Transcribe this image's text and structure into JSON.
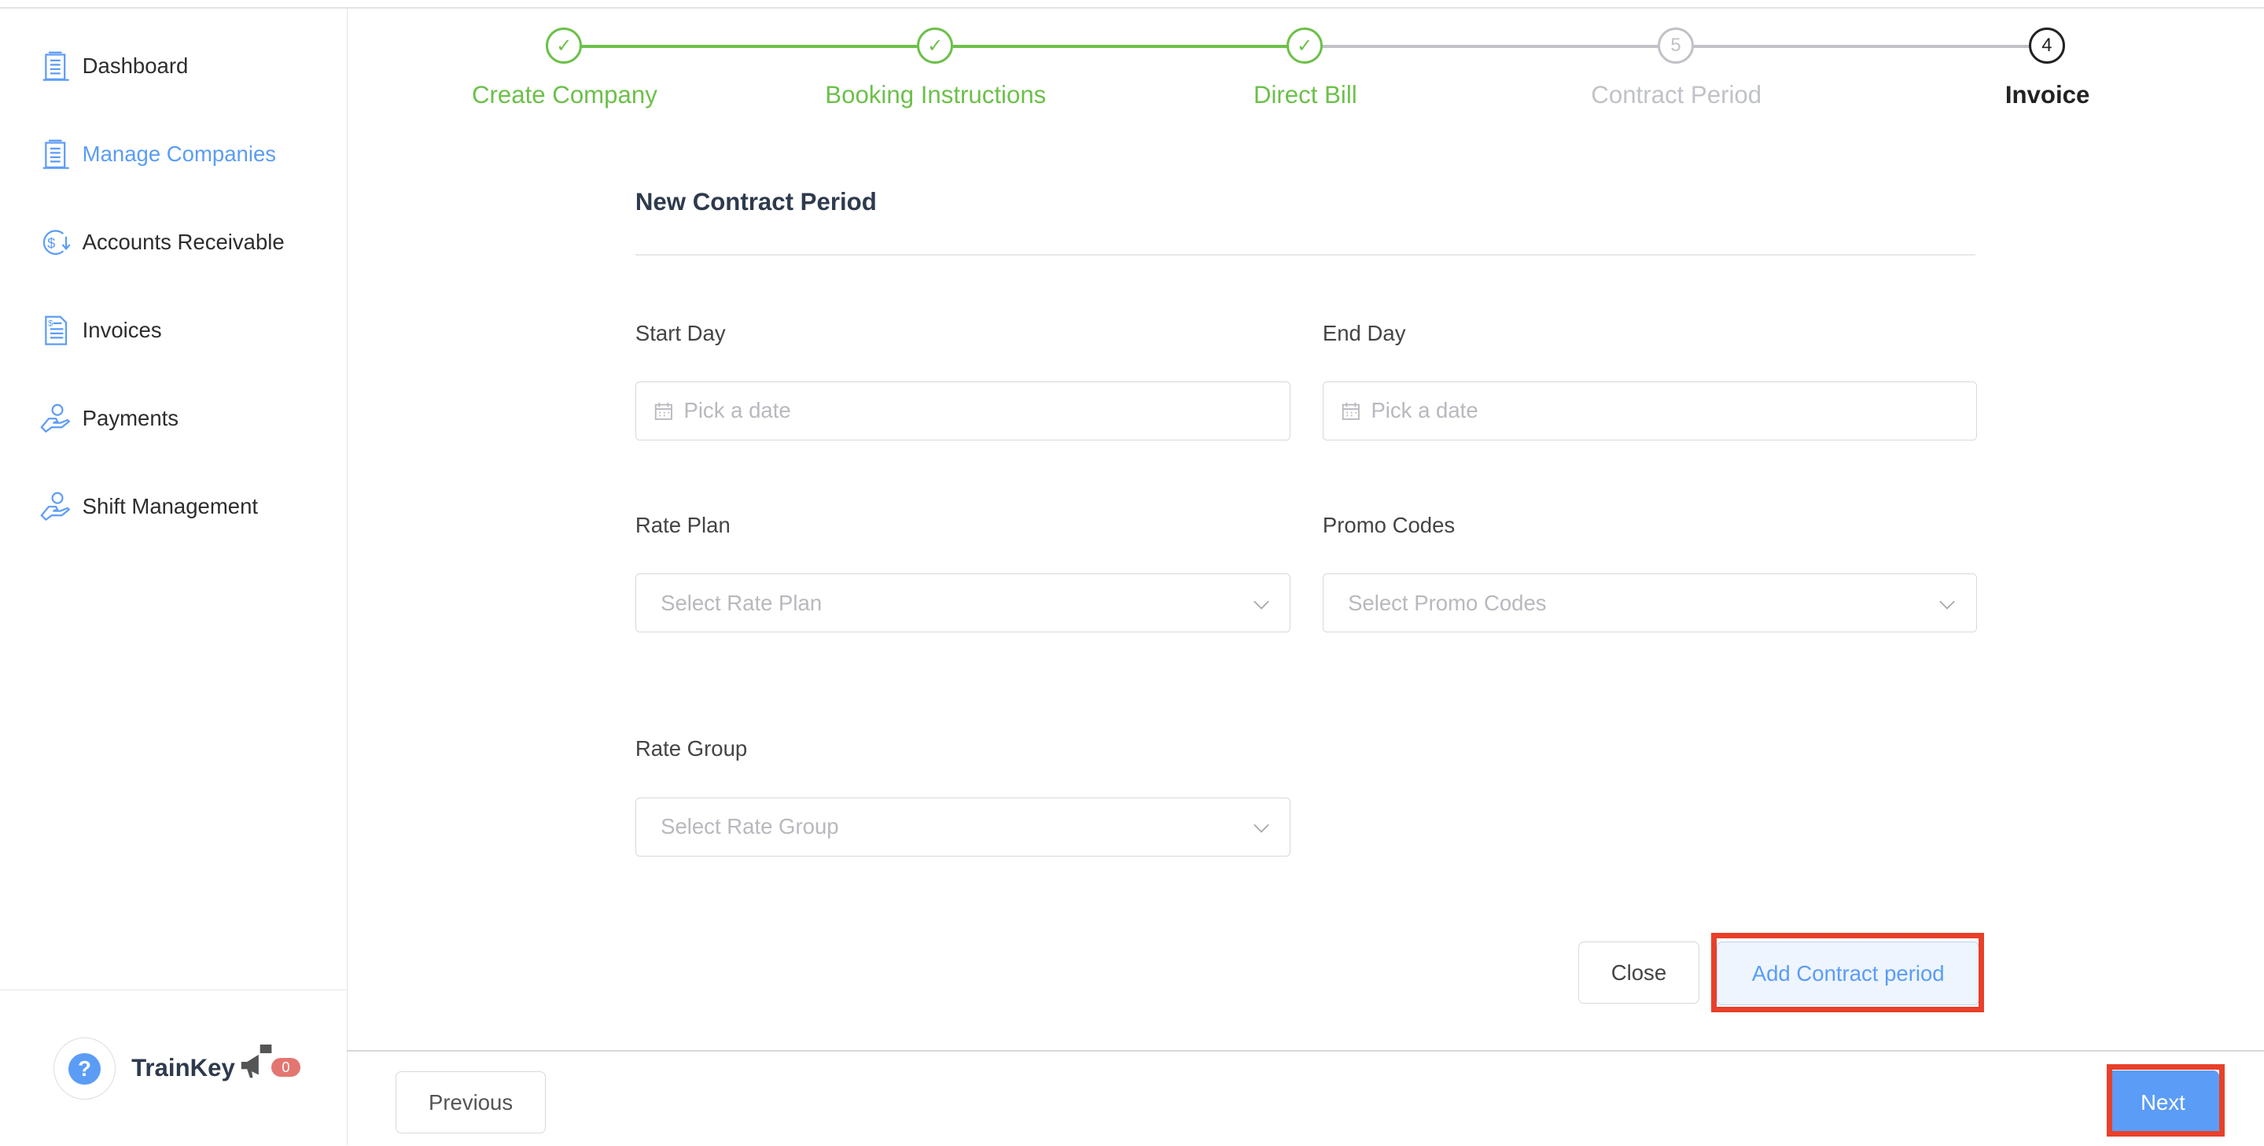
{
  "sidebar": {
    "items": [
      {
        "label": "Dashboard",
        "icon": "building-icon"
      },
      {
        "label": "Manage Companies",
        "icon": "building-icon",
        "active": true
      },
      {
        "label": "Accounts Receivable",
        "icon": "dollar-cycle-icon"
      },
      {
        "label": "Invoices",
        "icon": "invoice-icon"
      },
      {
        "label": "Payments",
        "icon": "hand-coin-icon"
      },
      {
        "label": "Shift Management",
        "icon": "hand-coin-icon"
      }
    ],
    "brand": "TrainKey",
    "notification_count": "0"
  },
  "stepper": {
    "steps": [
      {
        "label": "Create Company",
        "status": "done",
        "marker": "✓"
      },
      {
        "label": "Booking Instructions",
        "status": "done",
        "marker": "✓"
      },
      {
        "label": "Direct Bill",
        "status": "done",
        "marker": "✓"
      },
      {
        "label": "Contract Period",
        "status": "pending",
        "marker": "5"
      },
      {
        "label": "Invoice",
        "status": "current",
        "marker": "4"
      }
    ],
    "colors": {
      "done": "#6cc04a",
      "pending": "#c0c2c8",
      "current": "#222222"
    }
  },
  "form": {
    "title": "New Contract Period",
    "start_day": {
      "label": "Start Day",
      "placeholder": "Pick a date"
    },
    "end_day": {
      "label": "End Day",
      "placeholder": "Pick a date"
    },
    "rate_plan": {
      "label": "Rate Plan",
      "placeholder": "Select Rate Plan"
    },
    "promo_codes": {
      "label": "Promo Codes",
      "placeholder": "Select Promo Codes"
    },
    "rate_group": {
      "label": "Rate Group",
      "placeholder": "Select Rate Group"
    },
    "close_label": "Close",
    "add_label": "Add Contract period"
  },
  "footer": {
    "previous_label": "Previous",
    "next_label": "Next"
  },
  "colors": {
    "accent": "#5b9cf6",
    "highlight": "#e8402a"
  }
}
